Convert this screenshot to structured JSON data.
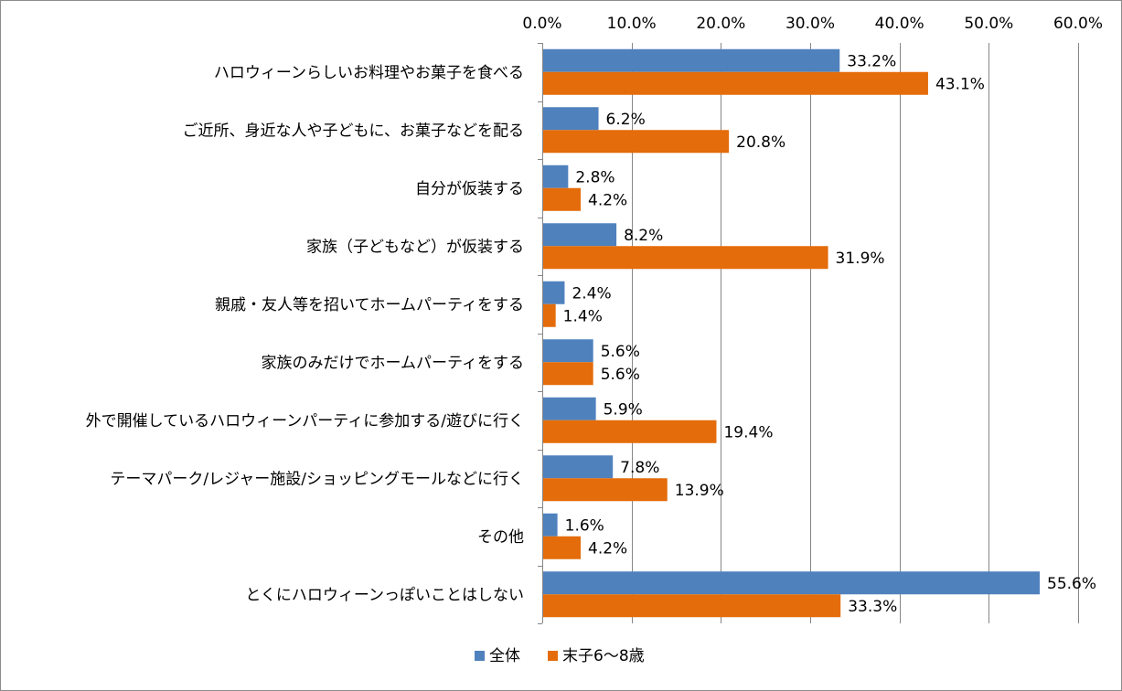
{
  "chart_data": {
    "type": "bar",
    "orientation": "horizontal",
    "title": "",
    "xlabel": "",
    "ylabel": "",
    "xlim": [
      0,
      60
    ],
    "x_axis_position": "top",
    "ticks": [
      "0.0%",
      "10.0%",
      "20.0%",
      "30.0%",
      "40.0%",
      "50.0%",
      "60.0%"
    ],
    "tick_values": [
      0,
      10,
      20,
      30,
      40,
      50,
      60
    ],
    "grid": true,
    "legend_position": "bottom",
    "categories": [
      "ハロウィーンらしいお料理やお菓子を食べる",
      "ご近所、身近な人や子どもに、お菓子などを配る",
      "自分が仮装する",
      "家族（子どもなど）が仮装する",
      "親戚・友人等を招いてホームパーティをする",
      "家族のみだけでホームパーティをする",
      "外で開催しているハロウィーンパーティに参加する/遊びに行く",
      "テーマパーク/レジャー施設/ショッピングモールなどに行く",
      "その他",
      "とくにハロウィーンっぽいことはしない"
    ],
    "series": [
      {
        "name": "全体",
        "color": "#4f81bd",
        "values": [
          33.2,
          6.2,
          2.8,
          8.2,
          2.4,
          5.6,
          5.9,
          7.8,
          1.6,
          55.6
        ],
        "labels": [
          "33.2%",
          "6.2%",
          "2.8%",
          "8.2%",
          "2.4%",
          "5.6%",
          "5.9%",
          "7.8%",
          "1.6%",
          "55.6%"
        ]
      },
      {
        "name": "末子6〜8歳",
        "color": "#e46c0a",
        "values": [
          43.1,
          20.8,
          4.2,
          31.9,
          1.4,
          5.6,
          19.4,
          13.9,
          4.2,
          33.3
        ],
        "labels": [
          "43.1%",
          "20.8%",
          "4.2%",
          "31.9%",
          "1.4%",
          "5.6%",
          "19.4%",
          "13.9%",
          "4.2%",
          "33.3%"
        ]
      }
    ]
  }
}
